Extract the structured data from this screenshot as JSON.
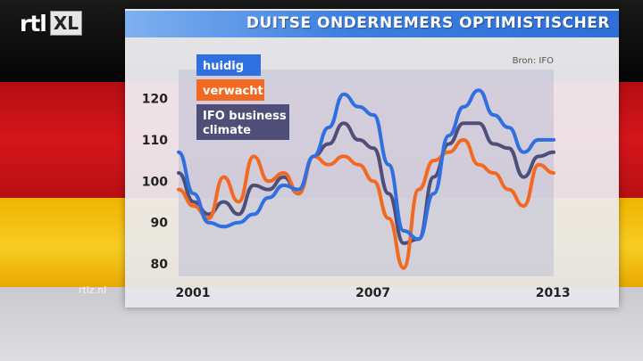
{
  "header": {
    "logo_left": "rtl",
    "logo_right": "XL"
  },
  "footer": {
    "watermark": "rtlz.nl"
  },
  "chart_data": {
    "type": "line",
    "title": "DUITSE ONDERNEMERS OPTIMISTISCHER",
    "source": "Bron: IFO",
    "xlabel": "",
    "ylabel": "",
    "xlim": [
      2001,
      2013.5
    ],
    "ylim": [
      77,
      127
    ],
    "yticks": [
      80,
      90,
      100,
      110,
      120
    ],
    "xticks": [
      2001,
      2007,
      2013
    ],
    "grid": false,
    "legend_position": "top-left",
    "series": [
      {
        "name": "huidig",
        "color": "#2f6fe0",
        "x": [
          2001.0,
          2001.5,
          2002.0,
          2002.5,
          2003.0,
          2003.5,
          2004.0,
          2004.5,
          2005.0,
          2005.5,
          2006.0,
          2006.5,
          2007.0,
          2007.5,
          2008.0,
          2008.5,
          2009.0,
          2009.5,
          2010.0,
          2010.5,
          2011.0,
          2011.5,
          2012.0,
          2012.5,
          2013.0,
          2013.5
        ],
        "values": [
          107,
          97,
          90,
          89,
          90,
          92,
          96,
          99,
          98,
          106,
          113,
          121,
          118,
          116,
          104,
          88,
          86,
          97,
          111,
          118,
          122,
          116,
          113,
          107,
          110,
          110
        ]
      },
      {
        "name": "verwacht",
        "color": "#f26a21",
        "x": [
          2001.0,
          2001.5,
          2002.0,
          2002.5,
          2003.0,
          2003.5,
          2004.0,
          2004.5,
          2005.0,
          2005.5,
          2006.0,
          2006.5,
          2007.0,
          2007.5,
          2008.0,
          2008.5,
          2009.0,
          2009.5,
          2010.0,
          2010.5,
          2011.0,
          2011.5,
          2012.0,
          2012.5,
          2013.0,
          2013.5
        ],
        "values": [
          98,
          94,
          91,
          101,
          95,
          106,
          100,
          102,
          97,
          106,
          104,
          106,
          104,
          100,
          91,
          79,
          98,
          105,
          107,
          110,
          104,
          102,
          98,
          94,
          104,
          102
        ]
      },
      {
        "name_line1": "IFO business",
        "name_line2": "climate",
        "color": "#4e4e78",
        "x": [
          2001.0,
          2001.5,
          2002.0,
          2002.5,
          2003.0,
          2003.5,
          2004.0,
          2004.5,
          2005.0,
          2005.5,
          2006.0,
          2006.5,
          2007.0,
          2007.5,
          2008.0,
          2008.5,
          2009.0,
          2009.5,
          2010.0,
          2010.5,
          2011.0,
          2011.5,
          2012.0,
          2012.5,
          2013.0,
          2013.5
        ],
        "values": [
          102,
          95,
          92,
          95,
          92,
          99,
          98,
          101,
          97,
          106,
          109,
          114,
          110,
          108,
          97,
          85,
          86,
          101,
          109,
          114,
          114,
          109,
          108,
          101,
          106,
          107
        ]
      }
    ]
  }
}
